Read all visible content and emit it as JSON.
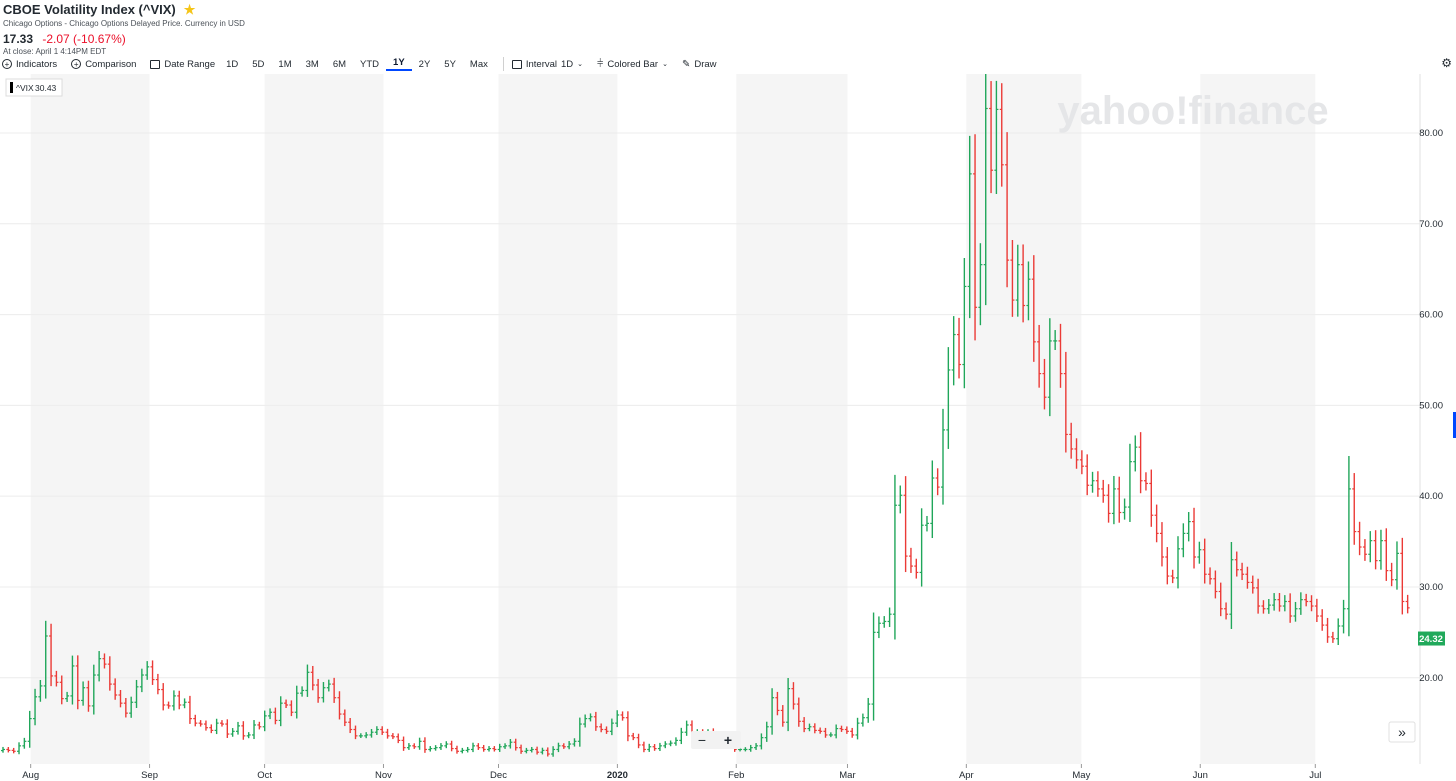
{
  "header": {
    "title": "CBOE Volatility Index (^VIX)",
    "subtitle": "Chicago Options - Chicago Options Delayed Price. Currency in USD",
    "price": "17.33",
    "change": "-2.07 (-10.67%)",
    "close_note": "At close: April 1 4:14PM EDT"
  },
  "toolbar": {
    "indicators": "Indicators",
    "comparison": "Comparison",
    "date_range": "Date Range",
    "ranges": [
      "1D",
      "5D",
      "1M",
      "3M",
      "6M",
      "YTD",
      "1Y",
      "2Y",
      "5Y",
      "Max"
    ],
    "active_range": "1Y",
    "interval_label": "Interval",
    "interval_value": "1D",
    "chart_type": "Colored Bar",
    "draw": "Draw"
  },
  "legend_box": {
    "symbol": "^VIX",
    "value": "30.43"
  },
  "watermark": "yahoo!finance",
  "last_price_tag": "24.32",
  "zoom": {
    "minus": "−",
    "plus": "+"
  },
  "expand_label": "»",
  "colors": {
    "up": "#20a65a",
    "down": "#eb3a36",
    "band": "#f5f5f5",
    "grid": "#ececec",
    "tag": "#21a95b",
    "accent": "#0047ff"
  },
  "chart_data": {
    "type": "bar",
    "style": "colored-ohlc",
    "y_ticks": [
      "20.00",
      "30.00",
      "40.00",
      "50.00",
      "60.00",
      "70.00",
      "80.00"
    ],
    "ylim": [
      10.5,
      86.5
    ],
    "x_ticks": [
      {
        "label": "Aug",
        "date": "2019-08-01"
      },
      {
        "label": "Sep",
        "date": "2019-09-01"
      },
      {
        "label": "Oct",
        "date": "2019-10-01"
      },
      {
        "label": "Nov",
        "date": "2019-11-01"
      },
      {
        "label": "Dec",
        "date": "2019-12-01"
      },
      {
        "label": "2020",
        "date": "2020-01-01"
      },
      {
        "label": "Feb",
        "date": "2020-02-01"
      },
      {
        "label": "Mar",
        "date": "2020-03-01"
      },
      {
        "label": "Apr",
        "date": "2020-04-01"
      },
      {
        "label": "May",
        "date": "2020-05-01"
      },
      {
        "label": "Jun",
        "date": "2020-06-01"
      },
      {
        "label": "Jul",
        "date": "2020-07-01"
      }
    ],
    "x_start": "2019-07-24",
    "x_end": "2020-07-27",
    "x_note": "daily sessions; close series (approx.)",
    "series": [
      {
        "closes": [
          [
            12.1,
            12.0,
            11.9,
            12.5,
            13.0,
            15.5,
            17.9,
            19.1,
            24.6,
            20.2,
            19.5,
            17.7,
            18.0,
            21.3,
            17.5,
            18.9,
            16.9,
            20.3,
            22.1,
            21.5,
            19.3,
            18.1,
            17.2,
            16.1,
            17.3,
            19.0,
            20.3,
            21.2,
            19.8,
            18.7,
            17.0,
            16.9,
            18.0
          ],
          [
            17.0,
            17.3,
            15.5,
            15.0,
            14.9,
            14.5,
            14.2,
            15.0,
            14.9,
            13.8,
            14.1,
            14.7,
            13.6,
            13.7,
            14.8,
            14.6,
            15.8,
            16.2,
            15.3,
            17.2,
            17.0,
            16.2,
            18.3,
            18.6,
            20.6
          ],
          [
            19.2,
            17.8,
            18.9,
            19.3,
            17.8,
            16.0,
            15.1,
            14.3,
            13.6,
            13.6,
            13.7,
            14.0,
            14.3,
            14.0,
            13.6,
            13.5,
            13.1,
            12.3,
            12.5,
            12.4,
            13.0,
            12.1,
            12.2,
            12.3,
            12.5,
            12.7,
            12.2,
            11.9,
            12.0,
            12.1,
            12.5,
            12.3,
            12.1,
            12.2,
            12.1,
            12.4,
            12.5,
            12.9,
            12.3,
            11.9,
            12.0,
            12.1,
            11.8,
            12.0,
            11.6,
            12.1
          ],
          [
            12.5,
            12.4,
            12.7,
            13.0,
            14.9,
            15.5,
            15.7,
            14.6,
            14.3,
            14.1,
            15.0,
            15.9,
            15.6,
            13.6,
            13.4,
            12.6,
            12.1,
            12.4,
            12.2,
            12.5,
            12.7,
            12.8,
            13.1,
            14.0,
            14.8,
            13.8,
            14.0
          ],
          [
            13.8,
            14.0,
            13.3,
            12.9,
            12.5,
            12.4,
            12.1,
            12.1,
            12.1,
            12.3,
            12.5,
            13.4,
            14.6,
            17.8,
            16.4,
            15.1,
            18.8,
            17.1,
            15.2,
            14.4,
            14.6,
            14.2,
            14.1,
            13.7,
            13.7,
            14.4,
            14.3,
            14.1,
            13.7,
            15.0,
            15.6,
            17.1
          ],
          [
            25.0,
            26.0,
            26.2,
            27.0,
            39.0,
            40.1,
            33.4,
            32.3,
            31.6,
            36.8,
            37.0,
            42.0,
            41.0,
            47.3,
            53.9,
            57.8,
            54.5,
            63.1,
            75.5,
            60.8,
            65.5,
            82.7,
            75.9,
            82.6,
            76.5,
            66.0,
            61.6,
            65.5,
            61.0,
            63.9,
            57.0,
            53.5,
            50.9,
            57.1,
            57.1,
            53.5
          ],
          [
            46.8,
            45.2,
            44.0,
            43.3,
            41.2,
            41.7,
            40.8,
            40.1,
            38.1,
            40.8,
            38.2,
            38.8,
            43.8,
            45.4,
            41.7,
            41.4,
            37.9,
            35.9,
            33.3,
            31.2,
            31.0,
            34.2,
            35.9,
            37.2,
            33.3,
            34.1,
            31.4,
            30.9,
            29.5,
            27.6,
            27.0,
            33.0,
            31.9,
            31.4,
            30.5,
            29.9,
            27.9,
            27.6,
            28.0,
            28.6,
            27.9,
            28.4,
            26.8,
            27.6,
            28.6,
            28.4,
            27.9,
            26.8,
            25.8,
            24.5,
            24.3,
            25.7,
            27.6,
            40.8,
            36.1,
            34.4,
            33.6,
            35.1,
            32.9,
            35.1,
            31.8,
            30.8,
            33.7,
            28.4
          ],
          [
            27.7,
            27.7,
            29.4,
            27.0,
            32.2,
            28.0,
            27.3,
            26.1,
            25.7,
            26.9,
            29.5,
            28.6,
            29.3,
            24.8,
            25.8,
            32.2,
            28.0,
            26.1,
            25.9,
            24.5,
            24.3
          ]
        ]
      }
    ]
  }
}
